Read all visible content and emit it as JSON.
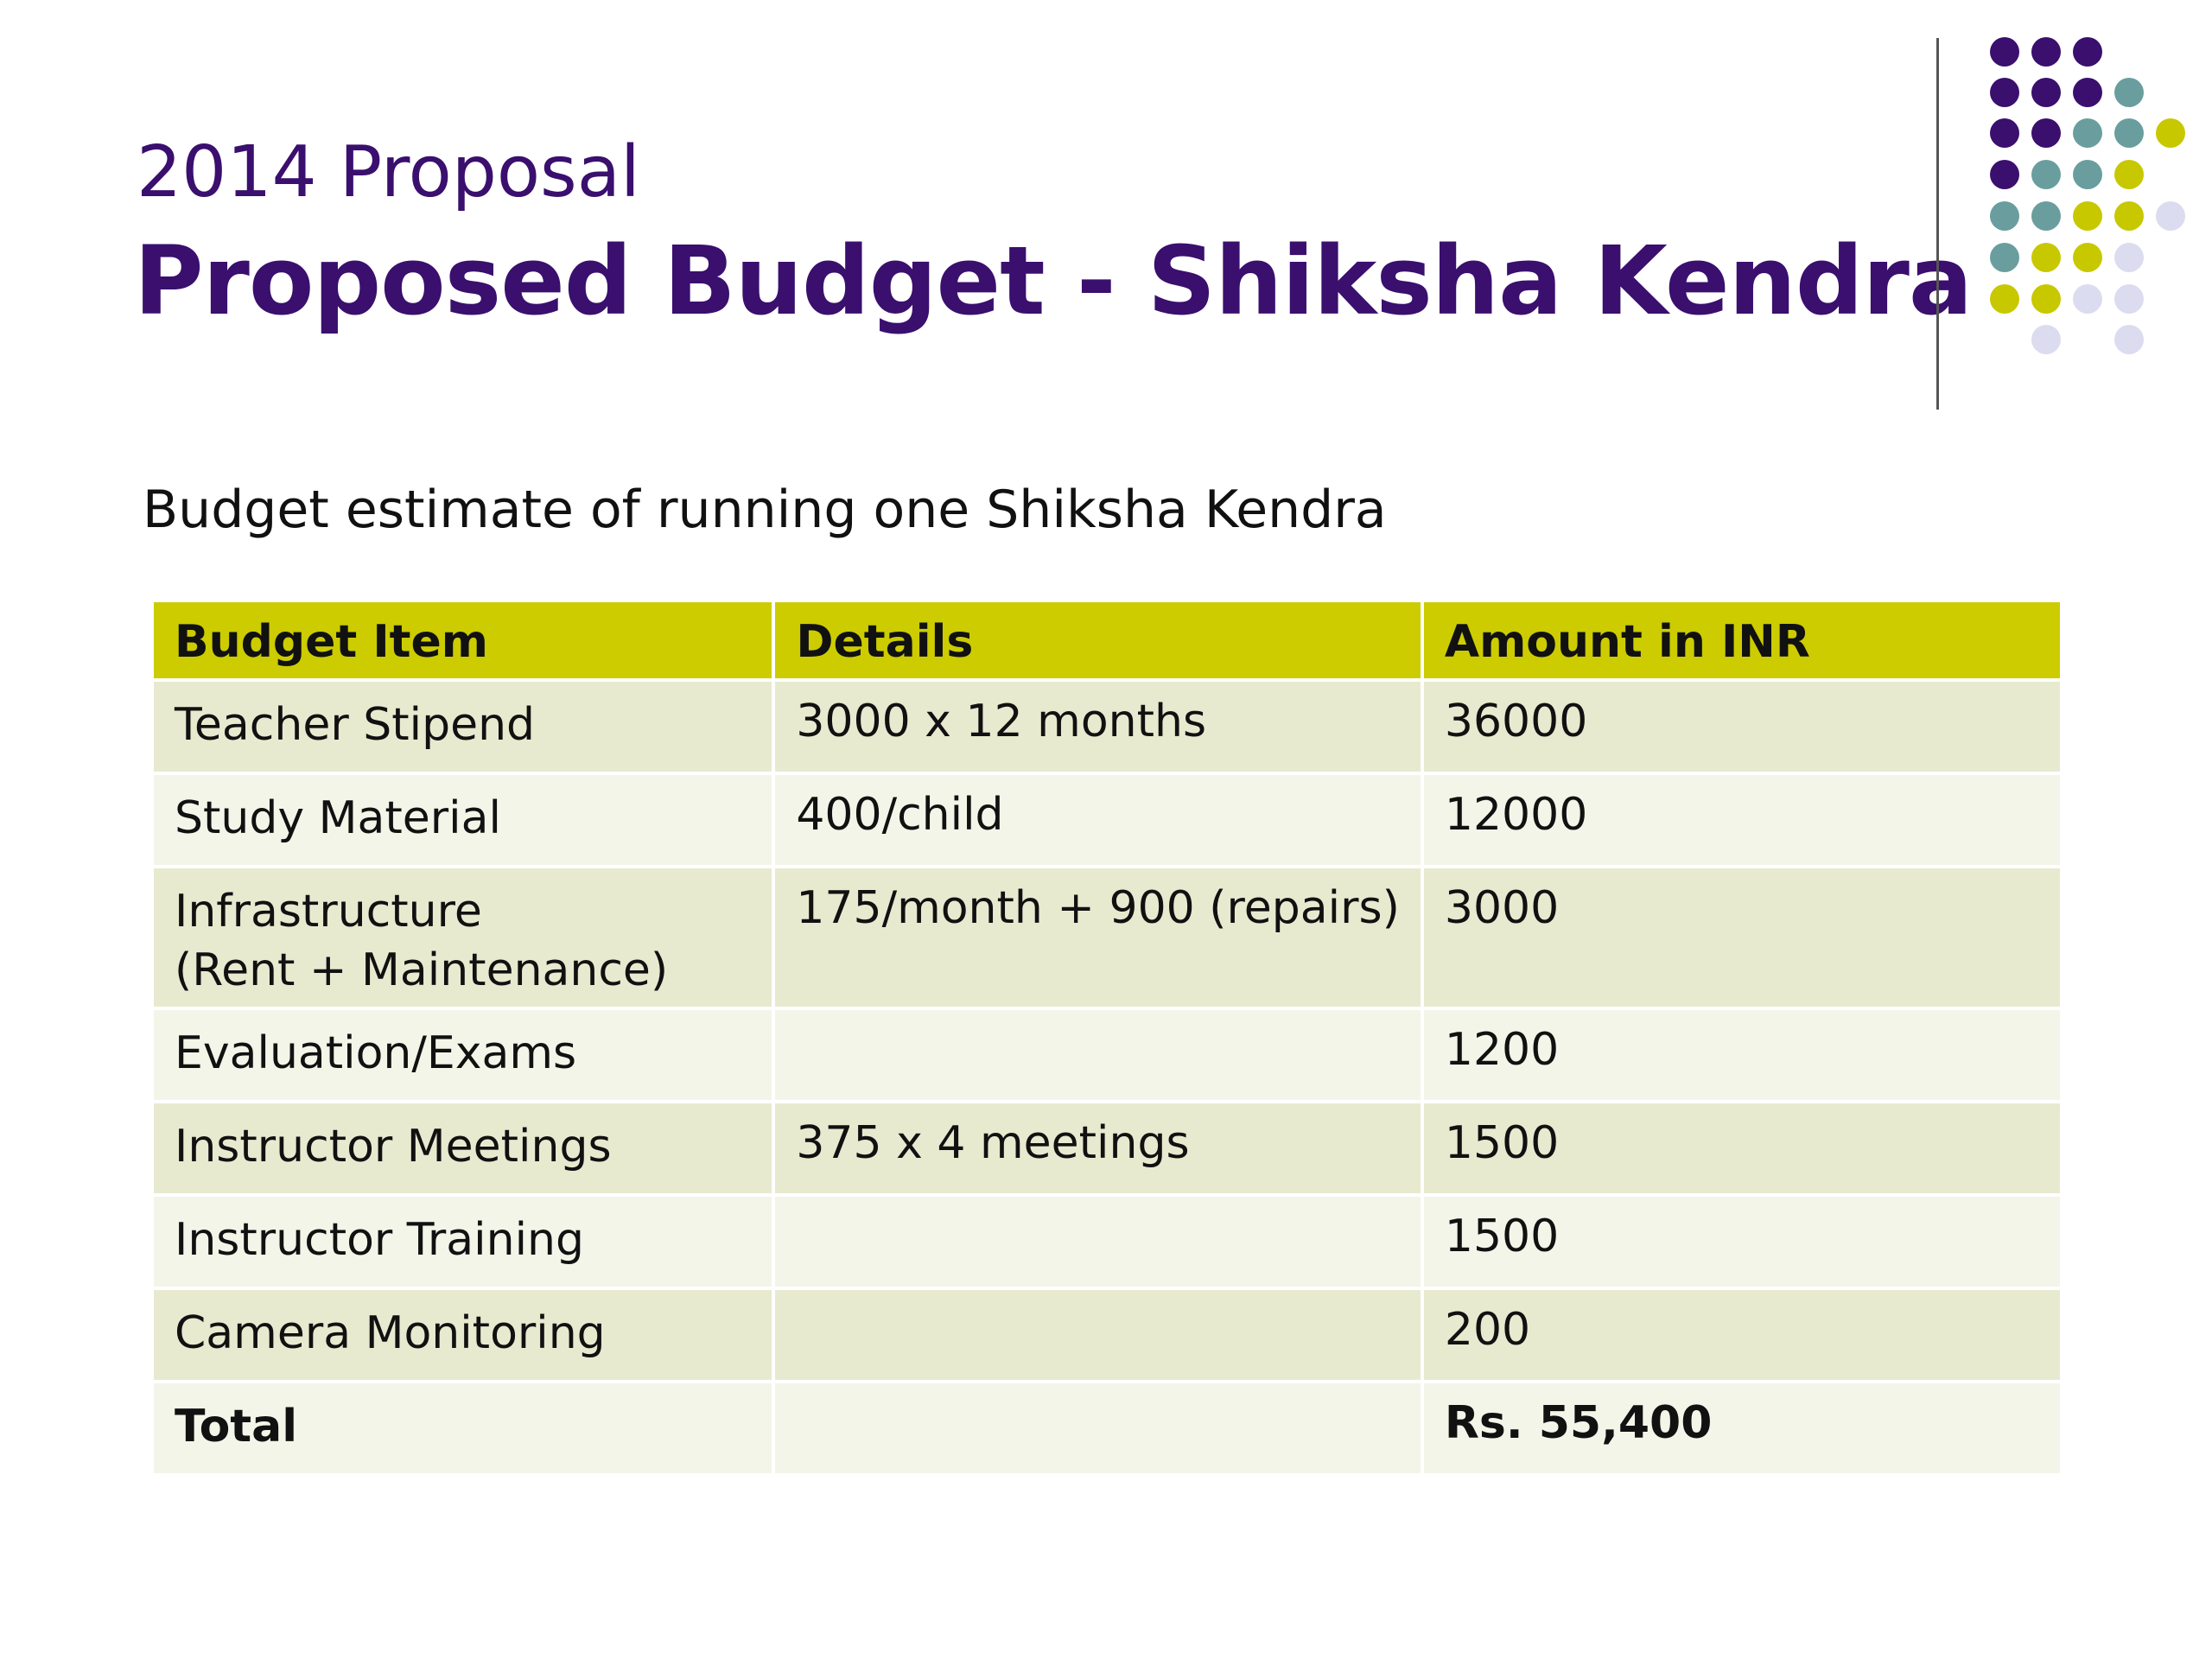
{
  "slide": {
    "title_small": "2014 Proposal",
    "title_big": "Proposed Budget - Shiksha Kendra",
    "subtitle": "Budget estimate of running one Shiksha Kendra"
  },
  "colors": {
    "title": "#3a0f6e",
    "header_fill": "#cccc00",
    "row_dark": "#e8ead0",
    "row_light": "#f4f5e9",
    "dot_purple": "#3a0f6e",
    "dot_teal": "#6a9e9e",
    "dot_yellow": "#c8c800",
    "dot_lavender": "#dcdcf0"
  },
  "table": {
    "headers": [
      "Budget Item",
      "Details",
      "Amount in INR"
    ],
    "rows": [
      {
        "item": "Teacher Stipend",
        "item_line2": "",
        "details": "3000 x 12 months",
        "amount": "36000"
      },
      {
        "item": "Study Material",
        "item_line2": "",
        "details": "400/child",
        "amount": "12000"
      },
      {
        "item": "Infrastructure",
        "item_line2": "(Rent + Maintenance)",
        "details": "175/month + 900 (repairs)",
        "amount": "3000"
      },
      {
        "item": "Evaluation/Exams",
        "item_line2": "",
        "details": "",
        "amount": "1200"
      },
      {
        "item": "Instructor Meetings",
        "item_line2": "",
        "details": "375 x 4 meetings",
        "amount": "1500"
      },
      {
        "item": "Instructor Training",
        "item_line2": "",
        "details": "",
        "amount": "1500"
      },
      {
        "item": "Camera Monitoring",
        "item_line2": "",
        "details": "",
        "amount": "200"
      },
      {
        "item": "Total",
        "item_line2": "",
        "details": "",
        "amount": "Rs. 55,400"
      }
    ]
  }
}
